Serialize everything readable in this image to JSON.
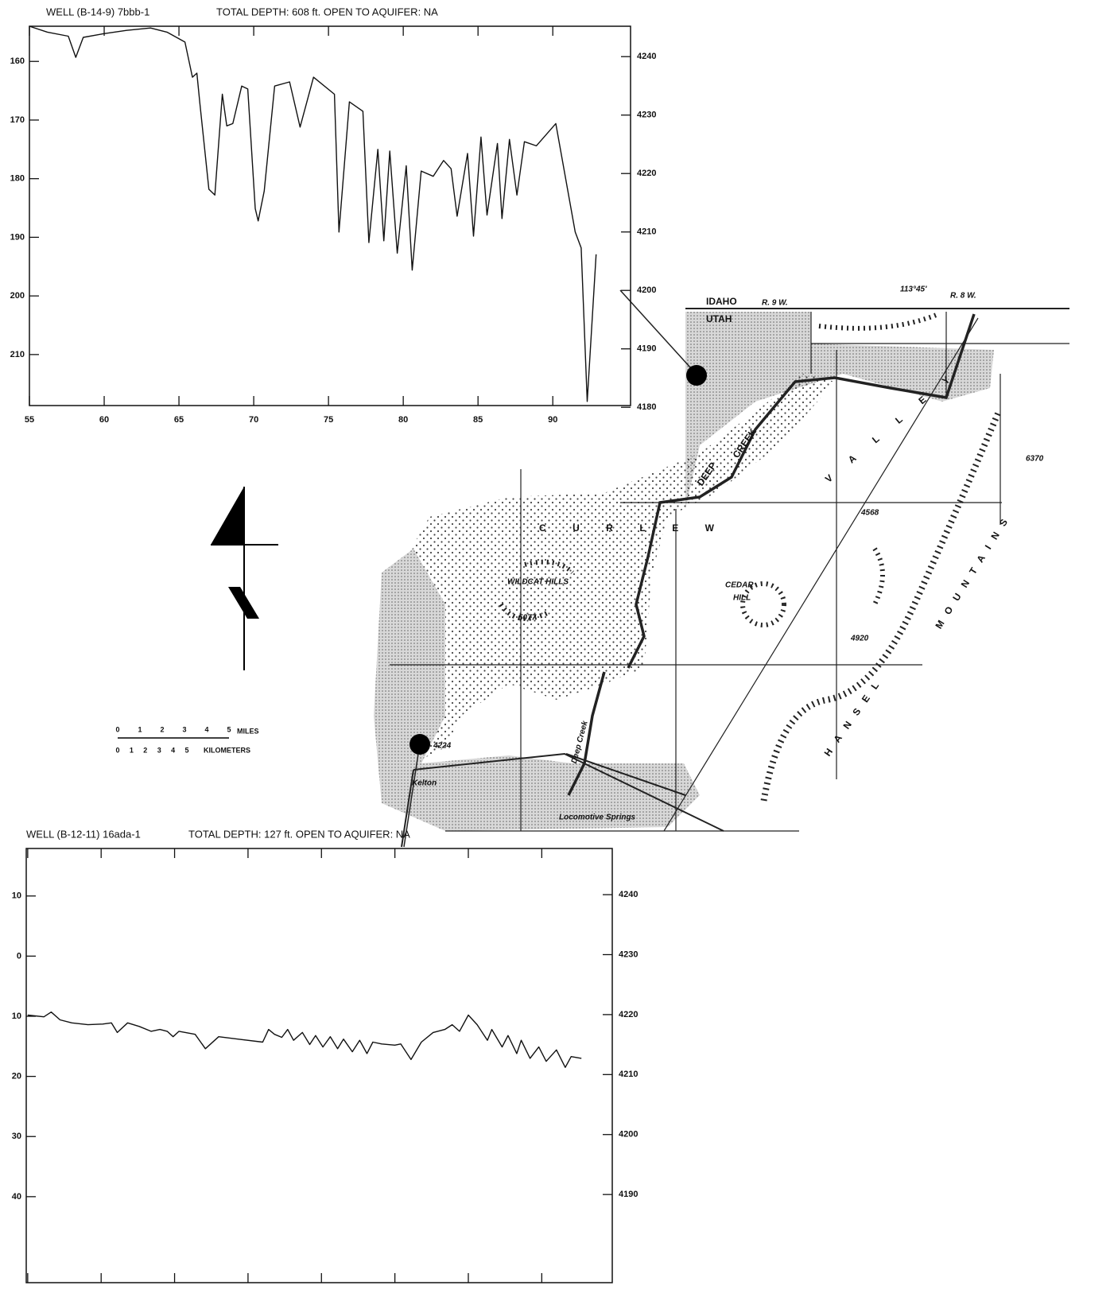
{
  "chart_data": [
    {
      "type": "line",
      "title": "WELL (B-14-9) 7bbb-1",
      "subtitle": "TOTAL DEPTH: 608 ft. OPEN TO AQUIFER: NA",
      "color": "#111111",
      "xlim": [
        55,
        95.2
      ],
      "xticks": [
        55,
        60,
        65,
        70,
        75,
        80,
        85,
        90
      ],
      "ylim": [
        154,
        218.7
      ],
      "yinvert": true,
      "yticks": [
        160,
        170,
        180,
        190,
        200,
        210
      ],
      "y2lim": [
        4180.3,
        4245.2
      ],
      "y2ticks": [
        4180,
        4190,
        4200,
        4210,
        4220,
        4230,
        4240
      ],
      "x": [
        55.0,
        56.2,
        57.6,
        58.1,
        58.6,
        59.9,
        61.5,
        63.1,
        64.2,
        65.4,
        65.9,
        66.2,
        66.4,
        67.0,
        67.4,
        67.9,
        68.2,
        68.6,
        69.2,
        69.6,
        70.1,
        70.3,
        70.7,
        71.4,
        72.4,
        73.1,
        74.0,
        75.4,
        75.7,
        76.4,
        77.3,
        77.7,
        78.3,
        78.7,
        79.1,
        79.6,
        80.2,
        80.6,
        81.2,
        82.0,
        82.7,
        83.2,
        83.6,
        84.3,
        84.7,
        85.2,
        85.6,
        86.3,
        86.6,
        87.1,
        87.6,
        88.1,
        88.9,
        90.2,
        91.5,
        91.9,
        92.3,
        92.9
      ],
      "values": [
        154.0,
        155.0,
        155.7,
        159.3,
        155.9,
        155.3,
        154.7,
        154.3,
        155.0,
        156.7,
        162.7,
        162.0,
        167.2,
        181.8,
        182.8,
        165.6,
        171.0,
        170.6,
        164.2,
        164.7,
        185.1,
        187.2,
        182.1,
        164.2,
        163.5,
        171.2,
        162.7,
        165.6,
        189.1,
        166.9,
        168.5,
        190.9,
        175.0,
        190.6,
        175.3,
        192.7,
        177.8,
        195.6,
        178.7,
        179.6,
        176.9,
        178.3,
        186.4,
        175.7,
        189.8,
        172.9,
        186.2,
        174.0,
        186.8,
        173.3,
        182.8,
        173.7,
        174.4,
        170.6,
        189.1,
        191.8,
        218.0,
        192.9
      ]
    },
    {
      "type": "line",
      "title": "WELL (B-12-11) 16ada-1",
      "subtitle": "TOTAL DEPTH: 127 ft. OPEN TO AQUIFER: NA",
      "color": "#111111",
      "xlim": [
        54.9,
        94.8
      ],
      "xticks": [
        55,
        60,
        65,
        70,
        75,
        80,
        85,
        90
      ],
      "ylim": [
        -17.9,
        54.3
      ],
      "yinvert": true,
      "yticks": [
        {
          "value": -10,
          "label": "10"
        },
        0,
        10,
        20,
        30,
        40
      ],
      "y2lim": [
        4175.3,
        4247.7
      ],
      "y2ticks": [
        4190,
        4200,
        4210,
        4220,
        4230,
        4240
      ],
      "x": [
        55.0,
        56.1,
        56.6,
        57.2,
        58.0,
        59.1,
        60.1,
        60.7,
        61.1,
        61.8,
        62.6,
        63.4,
        64.0,
        64.5,
        64.9,
        65.3,
        66.4,
        67.1,
        68.0,
        69.3,
        71.0,
        71.4,
        71.8,
        72.3,
        72.7,
        73.1,
        73.7,
        74.2,
        74.6,
        75.1,
        75.6,
        76.1,
        76.5,
        77.1,
        77.6,
        78.1,
        78.5,
        79.1,
        80.0,
        80.4,
        81.1,
        81.8,
        82.6,
        83.4,
        83.9,
        84.4,
        85.0,
        85.6,
        86.3,
        86.6,
        87.3,
        87.7,
        88.3,
        88.6,
        89.2,
        89.8,
        90.3,
        91.0,
        91.6,
        92.0,
        92.7
      ],
      "values": [
        9.8,
        10.1,
        9.3,
        10.6,
        11.1,
        11.4,
        11.3,
        11.1,
        12.7,
        11.1,
        11.7,
        12.5,
        12.2,
        12.5,
        13.4,
        12.5,
        13.0,
        15.4,
        13.4,
        13.8,
        14.3,
        12.2,
        13.0,
        13.5,
        12.2,
        14.0,
        12.7,
        14.7,
        13.2,
        15.1,
        13.4,
        15.4,
        13.8,
        15.9,
        14.0,
        16.2,
        14.3,
        14.6,
        14.8,
        14.6,
        17.2,
        14.3,
        12.7,
        12.2,
        11.4,
        12.5,
        9.8,
        11.4,
        14.0,
        12.2,
        15.1,
        13.2,
        16.2,
        14.0,
        17.0,
        15.1,
        17.5,
        15.6,
        18.5,
        16.7,
        17.0
      ]
    }
  ],
  "map": {
    "labels": [
      "IDAHO",
      "UTAH",
      "R. 9 W.",
      "R. 8 W.",
      "113°45'",
      "DEEP",
      "CREEK",
      "VALLEY",
      "CURLEW",
      "WILDCAT HILLS",
      "5077",
      "CEDAR",
      "HILL",
      "4920",
      "4568",
      "6370",
      "HANSEL",
      "MOUNTAINS",
      "Deep Creek",
      "Kelton",
      "4224",
      "Locomotive Springs"
    ],
    "scale": {
      "miles": [
        0,
        1,
        2,
        3,
        4,
        5
      ],
      "miles_unit": "MILES",
      "kilometers": [
        0,
        1,
        2,
        3,
        4,
        5
      ],
      "kilometers_unit": "KILOMETERS"
    }
  }
}
